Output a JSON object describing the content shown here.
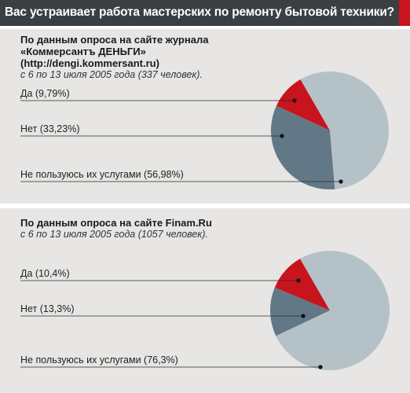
{
  "header": {
    "title": "Вас устраивает работа мастерских по ремонту бытовой техники?"
  },
  "colors": {
    "header_bg": "#3b3f44",
    "accent": "#c8141d",
    "panel_bg": "#e7e6e4",
    "slice_yes": "#c8141d",
    "slice_no": "#627887",
    "slice_dont_use": "#b4c2c8"
  },
  "surveys": [
    {
      "source_lines": [
        "По данным опроса на сайте журнала",
        "«Коммерсантъ ДЕНЬГИ»",
        "(http://dengi.kommersant.ru)"
      ],
      "date": "с 6 по 13 июля 2005 года (337 человек)."
    },
    {
      "source_lines": [
        "По данным опроса на сайте Finam.Ru"
      ],
      "date": "с 6 по 13 июля 2005 года (1057 человек)."
    }
  ],
  "chart_data": [
    {
      "type": "pie",
      "categories": [
        "Да",
        "Нет",
        "Не пользуюсь их услугами"
      ],
      "labels": [
        "Да (9,79%)",
        "Нет (33,23%)",
        "Не пользуюсь их услугами (56,98%)"
      ],
      "values": [
        9.79,
        33.23,
        56.98
      ],
      "colors": [
        "#c8141d",
        "#627887",
        "#b4c2c8"
      ]
    },
    {
      "type": "pie",
      "categories": [
        "Да",
        "Нет",
        "Не пользуюсь их услугами"
      ],
      "labels": [
        "Да (10,4%)",
        "Нет (13,3%)",
        "Не пользуюсь их услугами (76,3%)"
      ],
      "values": [
        10.4,
        13.3,
        76.3
      ],
      "colors": [
        "#c8141d",
        "#627887",
        "#b4c2c8"
      ]
    }
  ]
}
